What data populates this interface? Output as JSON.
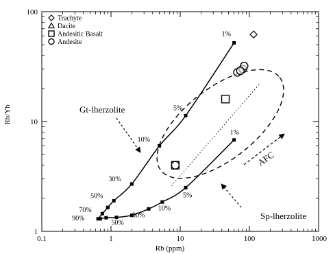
{
  "chart_data": {
    "type": "scatter",
    "xlabel": "Rb (ppm)",
    "ylabel": "Rb/Yb",
    "xscale": "log",
    "yscale": "log",
    "xlim": [
      0.1,
      1000
    ],
    "ylim": [
      1,
      100
    ],
    "x_ticks": [
      "0.1",
      "1",
      "10",
      "100",
      "1000"
    ],
    "y_ticks": [
      "1",
      "10",
      "100"
    ],
    "legend": {
      "placement": "top-left",
      "entries": [
        {
          "name": "Trachyte",
          "marker": "diamond"
        },
        {
          "name": "Dacite",
          "marker": "triangle"
        },
        {
          "name": "Andesitic Basalt",
          "marker": "square"
        },
        {
          "name": "Andesite",
          "marker": "circle"
        }
      ]
    },
    "samples": [
      {
        "rock": "Trachyte",
        "marker": "diamond",
        "points": [
          [
            115,
            62
          ]
        ]
      },
      {
        "rock": "Andesitic Basalt",
        "marker": "square",
        "points": [
          [
            8.5,
            4.0
          ],
          [
            45,
            16
          ]
        ]
      },
      {
        "rock": "Andesite",
        "marker": "circle",
        "points": [
          [
            8.5,
            4.0
          ],
          [
            67,
            28
          ],
          [
            80,
            30
          ],
          [
            84,
            32
          ],
          [
            74,
            29
          ]
        ]
      }
    ],
    "melting_curves": [
      {
        "name": "Gt-lherzolite",
        "points": [
          [
            0.65,
            1.3
          ],
          [
            0.75,
            1.45
          ],
          [
            0.9,
            1.65
          ],
          [
            1.1,
            1.9
          ],
          [
            2.0,
            2.7
          ],
          [
            5.0,
            6.0
          ],
          [
            12,
            11.3
          ],
          [
            60,
            52
          ]
        ],
        "percent_labels": [
          {
            "text": "90%",
            "x": 0.65,
            "y": 1.3
          },
          {
            "text": "70%",
            "x": 0.75,
            "y": 1.45
          },
          {
            "text": "50%",
            "x": 1.1,
            "y": 1.9
          },
          {
            "text": "30%",
            "x": 2.0,
            "y": 2.7
          },
          {
            "text": "10%",
            "x": 5.0,
            "y": 6.0
          },
          {
            "text": "5%",
            "x": 12,
            "y": 11.3
          },
          {
            "text": "1%",
            "x": 60,
            "y": 52
          }
        ]
      },
      {
        "name": "Sp-lherzolite",
        "points": [
          [
            0.7,
            1.3
          ],
          [
            0.85,
            1.33
          ],
          [
            1.2,
            1.34
          ],
          [
            2.0,
            1.4
          ],
          [
            3.5,
            1.6
          ],
          [
            5.5,
            1.85
          ],
          [
            12,
            2.5
          ],
          [
            60,
            6.8
          ]
        ],
        "percent_labels": [
          {
            "text": "50%",
            "x": 2.0,
            "y": 1.4
          },
          {
            "text": "30%",
            "x": 3.5,
            "y": 1.6
          },
          {
            "text": "10%",
            "x": 5.5,
            "y": 1.85
          },
          {
            "text": "5%",
            "x": 12,
            "y": 2.5
          },
          {
            "text": "1%",
            "x": 60,
            "y": 6.8
          }
        ]
      }
    ],
    "annotations": [
      "Gt-lherzolite",
      "Sp-lherzolite",
      "AFC"
    ]
  }
}
